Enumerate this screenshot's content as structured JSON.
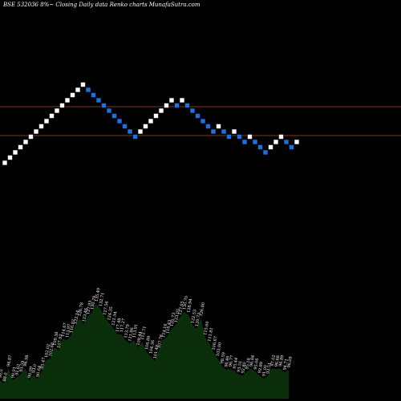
{
  "title": "BSE 532036  8%~  Closing Daily data  Renko  charts MunafaSutra.com",
  "colors": {
    "background": "#000000",
    "up_brick": "#ffffff",
    "down_brick": "#1e6fe0",
    "level_line": "#a0522d",
    "volume_fill": "#0a2d0a",
    "text": "#ffffff"
  },
  "chart_data": [
    {
      "type": "renko",
      "reference_levels": [
        133,
        169
      ],
      "bricks": [
        "up",
        "up",
        "up",
        "up",
        "up",
        "up",
        "up",
        "up",
        "up",
        "up",
        "up",
        "up",
        "up",
        "up",
        "up",
        "up",
        "down",
        "down",
        "down",
        "down",
        "down",
        "down",
        "down",
        "down",
        "down",
        "down",
        "up",
        "up",
        "up",
        "up",
        "up",
        "up",
        "up",
        "down",
        "up",
        "down",
        "down",
        "down",
        "down",
        "down",
        "down",
        "up",
        "down",
        "down",
        "up",
        "down",
        "down",
        "up",
        "down",
        "down",
        "down",
        "up",
        "up",
        "up",
        "down",
        "down",
        "up"
      ]
    },
    {
      "type": "area",
      "labels": [
        "90.0",
        "88.0",
        "96.87",
        "90.01",
        "91.62",
        "93.59",
        "96.98",
        "90.09",
        "93.0",
        "90.64",
        "95.47",
        "102.02",
        "102.88",
        "109.38",
        "107.92",
        "114.67",
        "113.97",
        "116.82",
        "122.14",
        "126.78",
        "123.46",
        "127.93",
        "130.79",
        "135.49",
        "132.71",
        "127.56",
        "124.35",
        "121.34",
        "117.48",
        "117.27",
        "113.79",
        "111.86",
        "113.91",
        "109.44",
        "112.71",
        "106.89",
        "104.36",
        "101.49",
        "107.76",
        "114.16",
        "116.43",
        "120.73",
        "123.05",
        "127.65",
        "130.70",
        "128.94",
        "122.53",
        "120.73",
        "126.80",
        "115.60",
        "111.81",
        "106.67",
        "103.00",
        "98.59",
        "96.46",
        "96.77",
        "95.44",
        "93.51",
        "92.80",
        "95.18",
        "96.84",
        "95.06",
        "92.89",
        "91.00",
        "92.51",
        "97.02",
        "96.68",
        "96.89",
        "94.71",
        "96.09"
      ],
      "values": [
        90.0,
        88.0,
        96.87,
        90.01,
        91.62,
        93.59,
        96.98,
        90.09,
        93.0,
        90.64,
        95.47,
        102.02,
        102.88,
        109.38,
        107.92,
        114.67,
        113.97,
        116.82,
        122.14,
        126.78,
        123.46,
        127.93,
        130.79,
        135.49,
        132.71,
        127.56,
        124.35,
        121.34,
        117.48,
        117.27,
        113.79,
        111.86,
        113.91,
        109.44,
        112.71,
        106.89,
        104.36,
        101.49,
        107.76,
        114.16,
        116.43,
        120.73,
        123.05,
        127.65,
        130.7,
        128.94,
        122.53,
        120.73,
        126.8,
        115.6,
        111.81,
        106.67,
        103.0,
        98.59,
        96.46,
        96.77,
        95.44,
        93.51,
        92.8,
        95.18,
        96.84,
        95.06,
        92.89,
        91.0,
        92.51,
        97.02,
        96.68,
        96.89,
        94.71,
        96.09
      ]
    }
  ]
}
